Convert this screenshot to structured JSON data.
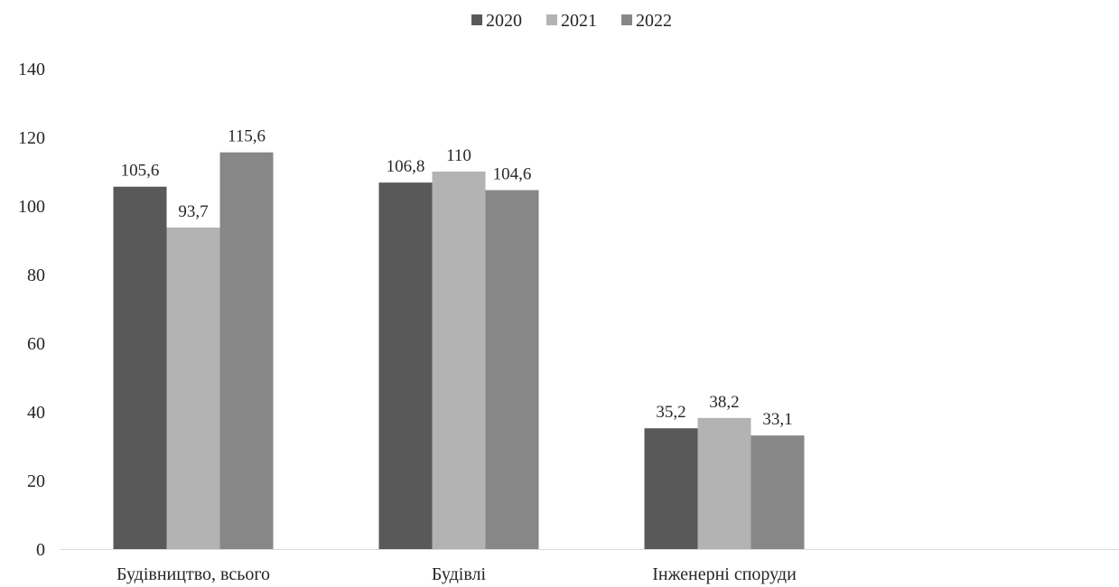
{
  "chart_data": {
    "type": "bar",
    "categories": [
      "Будівництво, всього",
      "Будівлі",
      "Інженерні споруди"
    ],
    "series": [
      {
        "name": "2020",
        "color": "#595959",
        "values": [
          105.6,
          106.8,
          35.2
        ],
        "labels": [
          "105,6",
          "106,8",
          "35,2"
        ]
      },
      {
        "name": "2021",
        "color": "#b3b3b3",
        "values": [
          93.7,
          110,
          38.2
        ],
        "labels": [
          "93,7",
          "110",
          "38,2"
        ]
      },
      {
        "name": "2022",
        "color": "#878787",
        "values": [
          115.6,
          104.6,
          33.1
        ],
        "labels": [
          "115,6",
          "104,6",
          "33,1"
        ]
      }
    ],
    "ylim": [
      0,
      140
    ],
    "yticks": [
      0,
      20,
      40,
      60,
      80,
      100,
      120,
      140
    ],
    "ytick_labels": [
      "0",
      "20",
      "40",
      "60",
      "80",
      "100",
      "120",
      "140"
    ],
    "grid": false,
    "legend": "top-center",
    "title": "",
    "xlabel": "",
    "ylabel": ""
  }
}
